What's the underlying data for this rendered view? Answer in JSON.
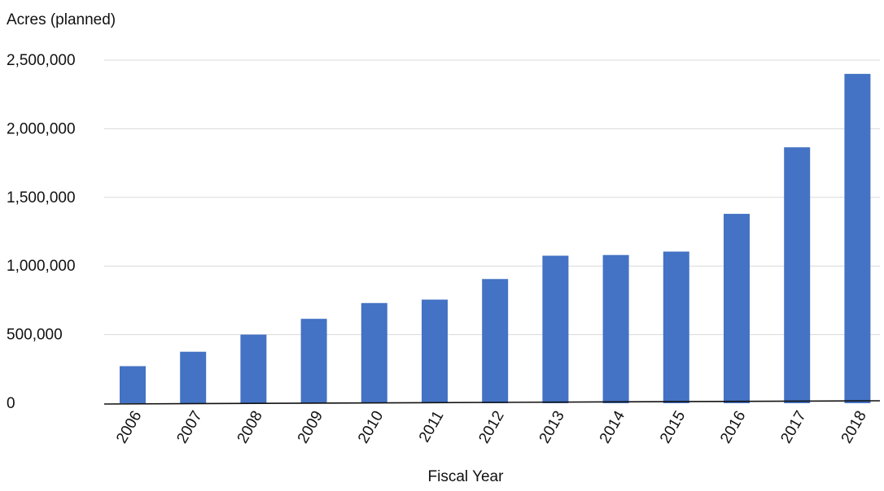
{
  "chart_data": {
    "type": "bar",
    "title": "",
    "ylabel": "Acres (planned)",
    "xlabel": "Fiscal Year",
    "categories": [
      "2006",
      "2007",
      "2008",
      "2009",
      "2010",
      "2011",
      "2012",
      "2013",
      "2014",
      "2015",
      "2016",
      "2017",
      "2018"
    ],
    "values": [
      270000,
      375000,
      500000,
      615000,
      730000,
      755000,
      905000,
      1075000,
      1080000,
      1105000,
      1380000,
      1865000,
      2400000
    ],
    "ylim": [
      0,
      2500000
    ],
    "yticks": [
      "0",
      "500,000",
      "1,000,000",
      "1,500,000",
      "2,000,000",
      "2,500,000"
    ],
    "ytick_values": [
      0,
      500000,
      1000000,
      1500000,
      2000000,
      2500000
    ],
    "grid": true,
    "legend": "none",
    "bar_color": "#4472c4"
  }
}
